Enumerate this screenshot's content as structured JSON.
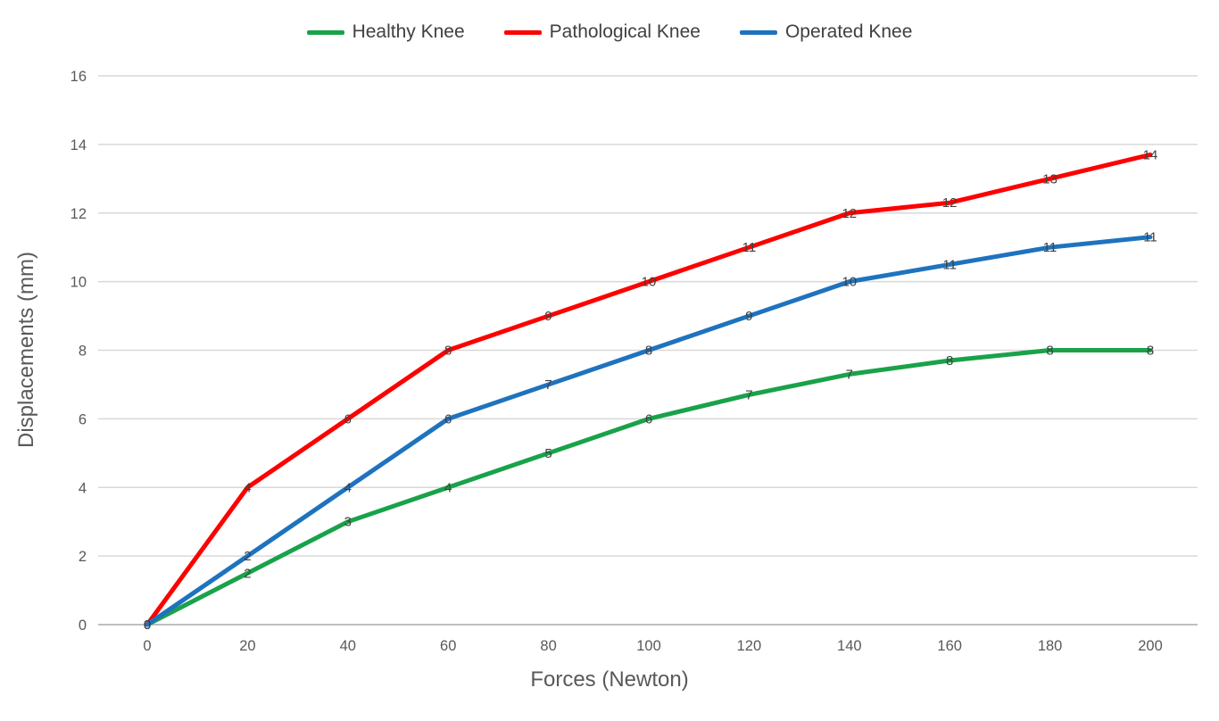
{
  "chart_data": {
    "type": "line",
    "title": "",
    "xlabel": "Forces (Newton)",
    "ylabel": "Displacements (mm)",
    "x": [
      0,
      20,
      40,
      60,
      80,
      100,
      120,
      140,
      160,
      180,
      200
    ],
    "xticks": [
      0,
      20,
      40,
      60,
      80,
      100,
      120,
      140,
      160,
      180,
      200
    ],
    "yticks": [
      0,
      2,
      4,
      6,
      8,
      10,
      12,
      14,
      16
    ],
    "xlim": [
      0,
      200
    ],
    "ylim": [
      0,
      16
    ],
    "grid": "horizontal",
    "legend_position": "top-center",
    "colors": {
      "healthy": "#19a24a",
      "pathological": "#fe0000",
      "operated": "#1e73be",
      "gridline": "#d9d9d9",
      "axis_line": "#bfbfbf",
      "tick_text": "#595959",
      "data_label_text": "#3f3f3f"
    },
    "series": [
      {
        "name": "Healthy Knee",
        "color": "#19a24a",
        "values": [
          0,
          1.5,
          3,
          4,
          5,
          6,
          6.7,
          7.3,
          7.7,
          8,
          8
        ],
        "labels": [
          "0",
          "2",
          "3",
          "4",
          "5",
          "6",
          "7",
          "7",
          "8",
          "8",
          "8"
        ]
      },
      {
        "name": "Pathological Knee",
        "color": "#fe0000",
        "values": [
          0,
          4,
          6,
          8,
          9,
          10,
          11,
          12,
          12.3,
          13,
          13.7
        ],
        "labels": [
          "0",
          "4",
          "6",
          "8",
          "9",
          "10",
          "11",
          "12",
          "12",
          "13",
          "14"
        ]
      },
      {
        "name": "Operated Knee",
        "color": "#1e73be",
        "values": [
          0,
          2,
          4,
          6,
          7,
          8,
          9,
          10,
          10.5,
          11,
          11.3
        ],
        "labels": [
          "0",
          "2",
          "4",
          "6",
          "7",
          "8",
          "9",
          "10",
          "11",
          "11",
          "11"
        ]
      }
    ]
  }
}
